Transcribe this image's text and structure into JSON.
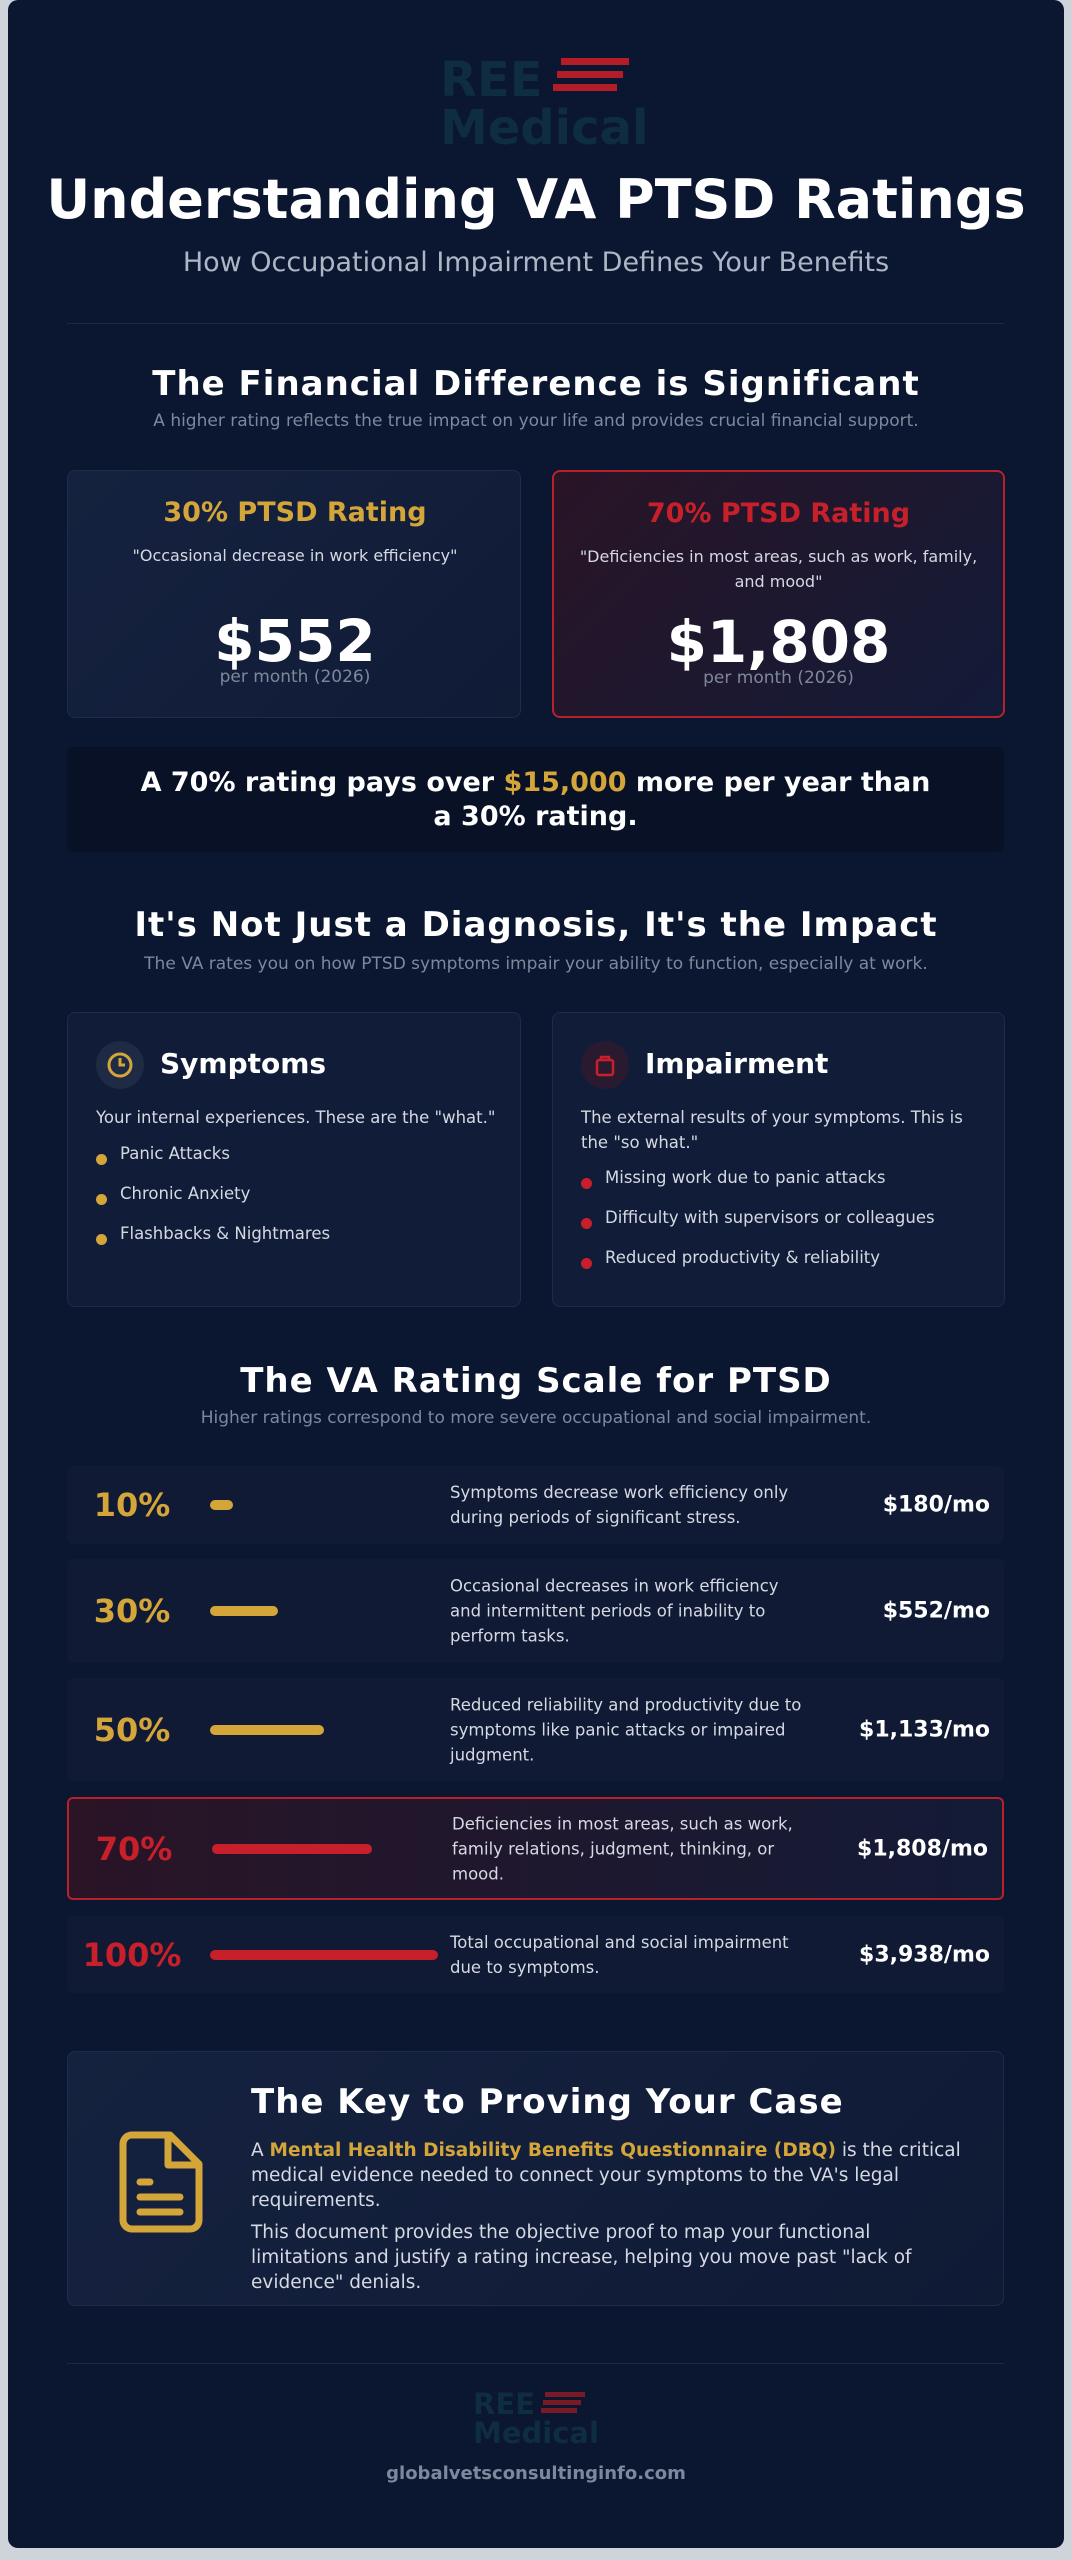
{
  "header": {
    "logo_top": "REE",
    "logo_bottom": "Medical",
    "title": "Understanding VA PTSD Ratings",
    "subtitle": "How Occupational Impairment Defines Your Benefits"
  },
  "financial": {
    "heading": "The Financial Difference is Significant",
    "subheading": "A higher rating reflects the true impact on your life and provides crucial financial support.",
    "cards": [
      {
        "title": "30% PTSD Rating",
        "quote": "\"Occasional decrease in work efficiency\"",
        "amount": "$552",
        "period": "per month (2026)"
      },
      {
        "title": "70% PTSD Rating",
        "quote": "\"Deficiencies in most areas, such as work, family, and mood\"",
        "amount": "$1,808",
        "period": "per month (2026)"
      }
    ],
    "banner": {
      "before": "A 70% rating pays over ",
      "highlight": "$15,000",
      "after": " more per year than a 30% rating."
    }
  },
  "impact": {
    "heading": "It's Not Just a Diagnosis, It's the Impact",
    "subheading": "The VA rates you on how PTSD symptoms impair your ability to function, especially at work.",
    "cards": [
      {
        "title": "Symptoms",
        "description": "Your internal experiences. These are the \"what.\"",
        "items": [
          "Panic Attacks",
          "Chronic Anxiety",
          "Flashbacks & Nightmares"
        ]
      },
      {
        "title": "Impairment",
        "description": "The external results of your symptoms. This is the \"so what.\"",
        "items": [
          "Missing work due to panic attacks",
          "Difficulty with supervisors or colleagues",
          "Reduced productivity & reliability"
        ]
      }
    ]
  },
  "scale": {
    "heading": "The VA Rating Scale for PTSD",
    "subheading": "Higher ratings correspond to more severe occupational and social impairment.",
    "rows": [
      {
        "rating": "10%",
        "description": "Symptoms decrease work efficiency only during periods of significant stress.",
        "payment": "$180/mo"
      },
      {
        "rating": "30%",
        "description": "Occasional decreases in work efficiency and intermittent periods of inability to perform tasks.",
        "payment": "$552/mo"
      },
      {
        "rating": "50%",
        "description": "Reduced reliability and productivity due to symptoms like panic attacks or impaired judgment.",
        "payment": "$1,133/mo"
      },
      {
        "rating": "70%",
        "description": "Deficiencies in most areas, such as work, family relations, judgment, thinking, or mood.",
        "payment": "$1,808/mo"
      },
      {
        "rating": "100%",
        "description": "Total occupational and social impairment due to symptoms.",
        "payment": "$3,938/mo"
      }
    ]
  },
  "key": {
    "heading": "The Key to Proving Your Case",
    "p1_before": "A ",
    "p1_bold": "Mental Health Disability Benefits Questionnaire (DBQ)",
    "p1_after": " is the critical medical evidence needed to connect your symptoms to the VA's legal requirements.",
    "p2": "This document provides the objective proof to map your functional limitations and justify a rating increase, helping you move past \"lack of evidence\" denials."
  },
  "footer": {
    "logo_top": "REE",
    "logo_bottom": "Medical",
    "url": "globalvetsconsultinginfo.com"
  }
}
